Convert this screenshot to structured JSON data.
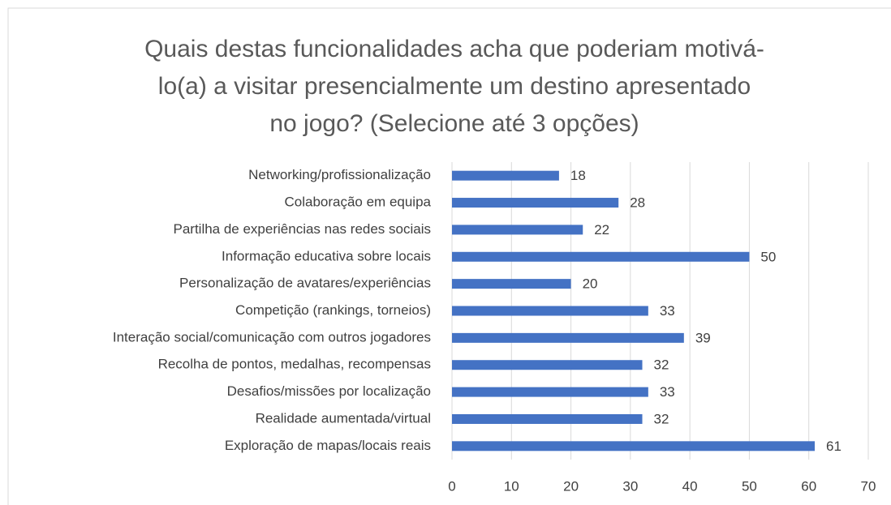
{
  "chart_data": {
    "type": "bar",
    "orientation": "horizontal",
    "title": [
      "Quais destas funcionalidades acha que poderiam motivá-",
      "lo(a) a visitar presencialmente um destino apresentado",
      "no jogo? (Selecione até 3 opções)"
    ],
    "categories": [
      "Networking/profissionalização",
      "Colaboração em equipa",
      "Partilha de experiências nas redes sociais",
      "Informação educativa sobre locais",
      "Personalização de avatares/experiências",
      "Competição (rankings, torneios)",
      "Interação social/comunicação com outros jogadores",
      "Recolha de pontos, medalhas, recompensas",
      "Desafios/missões por localização",
      "Realidade aumentada/virtual",
      "Exploração de mapas/locais reais"
    ],
    "values": [
      18,
      28,
      22,
      50,
      20,
      33,
      39,
      32,
      33,
      32,
      61
    ],
    "color": "#4472c4",
    "xlim": [
      0,
      70
    ],
    "xticks": [
      0,
      10,
      20,
      30,
      40,
      50,
      60,
      70
    ],
    "grid": true
  }
}
